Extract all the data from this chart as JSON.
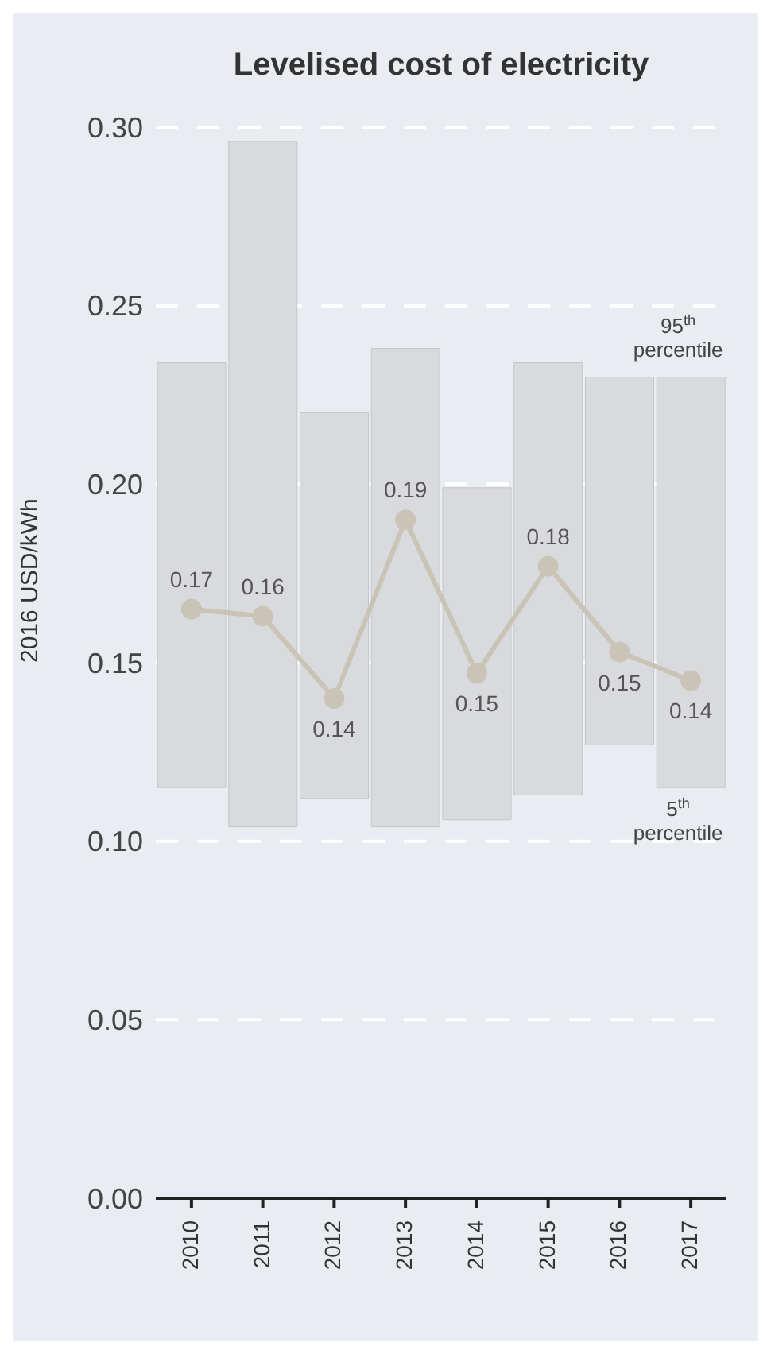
{
  "chart_data": {
    "type": "bar",
    "title": "Levelised cost of electricity",
    "ylabel": "2016 USD/kWh",
    "categories": [
      "2010",
      "2011",
      "2012",
      "2013",
      "2014",
      "2015",
      "2016",
      "2017"
    ],
    "series": [
      {
        "color": "#d9dadd",
        "base": [
          0.115,
          0.104,
          0.112,
          0.104,
          0.106,
          0.113,
          0.127,
          0.115
        ],
        "values": [
          0.119,
          0.192,
          0.108,
          0.134,
          0.093,
          0.121,
          0.103,
          0.115
        ]
      },
      {
        "type": "line",
        "color": "#c9c4b5",
        "values": [
          0.165,
          0.163,
          0.14,
          0.19,
          0.147,
          0.177,
          0.153,
          0.145
        ],
        "value_labels": [
          "0.17",
          "0.16",
          "0.14",
          "0.19",
          "0.15",
          "0.18",
          "0.15",
          "0.14"
        ]
      }
    ],
    "annotations": [
      {
        "text": "95$^{th}$ percentile",
        "x": "2017",
        "y": 0.23
      },
      {
        "text": "5$^{th}$ percentile",
        "x": "2017",
        "y": 0.115
      }
    ],
    "ylim": [
      0,
      0.3
    ],
    "yticks": [
      {
        "value": 0,
        "label": "0.00"
      },
      0.05,
      {
        "value": 0.1,
        "label": "0.10"
      },
      0.15,
      {
        "value": 0.2,
        "label": "0.20"
      },
      0.25,
      {
        "value": 0.3,
        "label": "0.30"
      }
    ],
    "grid": "y",
    "legend": false,
    "marker": "circle",
    "line_style": "solid"
  }
}
